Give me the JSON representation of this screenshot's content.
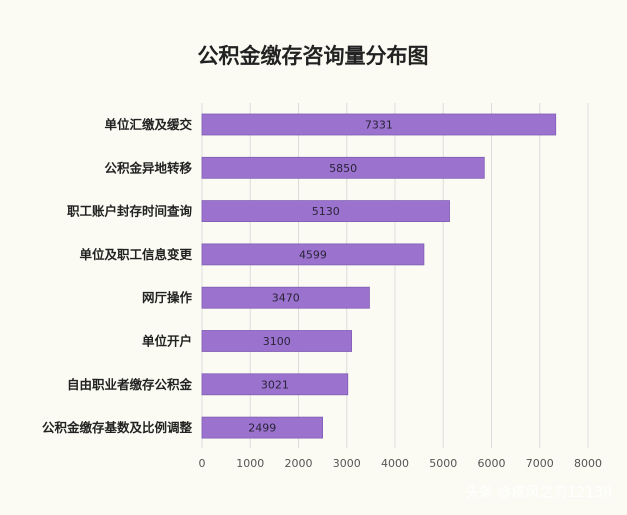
{
  "chart_data": {
    "type": "bar",
    "orientation": "horizontal",
    "title": "公积金缴存咨询量分布图",
    "categories": [
      "单位汇缴及缓交",
      "公积金异地转移",
      "职工账户封存时间查询",
      "单位及职工信息变更",
      "网厅操作",
      "单位开户",
      "自由职业者缴存公积金",
      "公积金缴存基数及比例调整"
    ],
    "values": [
      7331,
      5850,
      5130,
      4599,
      3470,
      3100,
      3021,
      2499
    ],
    "data_labels": [
      "7331",
      "5850",
      "5130",
      "4599",
      "3470",
      "3100",
      "3021",
      "2499"
    ],
    "xlim": [
      0,
      8000
    ],
    "x_ticks": [
      "0",
      "1000",
      "2000",
      "3000",
      "4000",
      "5000",
      "6000",
      "7000",
      "8000"
    ],
    "grid": true,
    "bar_color": "#9b73cf",
    "bar_edge_color": "#7f5cb3"
  },
  "watermark": "头条 @疾风之刃12138"
}
